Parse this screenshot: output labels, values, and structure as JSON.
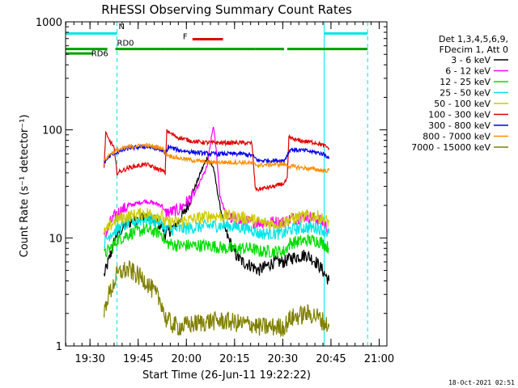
{
  "chart_data": {
    "type": "line",
    "title": "RHESSI Observing Summary Count Rates",
    "xlabel": "Start Time (26-Jun-11 19:22:22)",
    "ylabel": "Count Rate (s⁻¹ detector⁻¹)",
    "yscale": "log",
    "ylim": [
      1,
      1000
    ],
    "xlim_minutes": [
      0,
      100
    ],
    "x_ticks": [
      {
        "label": "19:30",
        "t": 7.6
      },
      {
        "label": "19:45",
        "t": 22.6
      },
      {
        "label": "20:00",
        "t": 37.6
      },
      {
        "label": "20:15",
        "t": 52.6
      },
      {
        "label": "20:30",
        "t": 67.6
      },
      {
        "label": "20:45",
        "t": 82.6
      },
      {
        "label": "21:00",
        "t": 97.6
      }
    ],
    "y_ticks": [
      {
        "label": "1",
        "v": 1
      },
      {
        "label": "10",
        "v": 10
      },
      {
        "label": "100",
        "v": 100
      },
      {
        "label": "1000",
        "v": 1000
      }
    ],
    "legend_header": [
      "Det 1,3,4,5,6,9,",
      "FDecim 1, Att 0"
    ],
    "legend_position": "right",
    "timestamp": "18-Oct-2021 02:51",
    "flags": [
      {
        "label": "N",
        "color": "#00e5e5",
        "segments": [
          [
            0,
            16
          ],
          [
            80.5,
            94
          ]
        ],
        "level": 780
      },
      {
        "label": "F",
        "color": "#e00000",
        "segments": [
          [
            39.5,
            49
          ]
        ],
        "level": 690
      },
      {
        "label": "RD0",
        "color": "#00a000",
        "segments": [
          [
            15.5,
            31
          ]
        ],
        "level": 560
      },
      {
        "label": "RD6",
        "color": "#00a000",
        "segments": [
          [
            0,
            8.5
          ]
        ],
        "level": 510
      }
    ],
    "green_flag_segments": [
      [
        0,
        13
      ],
      [
        31,
        59
      ],
      [
        59,
        68
      ],
      [
        69,
        94
      ]
    ],
    "vlines": [
      {
        "t": 0,
        "color": "#00e5e5",
        "dashed": false
      },
      {
        "t": 16,
        "color": "#00e5e5",
        "dashed": true
      },
      {
        "t": 80.5,
        "color": "#00e5e5",
        "dashed": false
      },
      {
        "t": 94,
        "color": "#00e5e5",
        "dashed": true
      }
    ],
    "data_gaps": [
      [
        0,
        12
      ],
      [
        82,
        100
      ]
    ],
    "orbit_breaks": [
      15.5,
      31,
      59,
      69
    ],
    "series": [
      {
        "name": "3 - 6 keV",
        "color": "#000000",
        "x": [
          12,
          14,
          16,
          20,
          25,
          30,
          31,
          33,
          37,
          40,
          42,
          44,
          46,
          48,
          50,
          52,
          53,
          55,
          58,
          60,
          65,
          68,
          70,
          75,
          78,
          80,
          82
        ],
        "values": [
          4.5,
          7,
          11,
          14,
          16,
          13,
          11,
          12,
          17,
          28,
          40,
          55,
          45,
          20,
          11,
          8,
          7,
          6,
          5.5,
          5,
          6,
          6,
          6.5,
          7,
          6,
          5,
          4
        ]
      },
      {
        "name": "6 - 12 keV",
        "color": "#ff00ff",
        "x": [
          12,
          14,
          16,
          20,
          25,
          30,
          31,
          35,
          40,
          44,
          46,
          47,
          48,
          50,
          52,
          55,
          58,
          60,
          65,
          68,
          70,
          75,
          78,
          80,
          82
        ],
        "values": [
          10,
          14,
          17,
          20,
          22,
          20,
          17,
          18,
          25,
          45,
          110,
          60,
          25,
          16,
          15,
          14,
          14,
          14,
          14,
          14,
          15,
          16,
          15,
          14,
          12
        ]
      },
      {
        "name": "12 - 25 keV",
        "color": "#00dd00",
        "x": [
          12,
          14,
          16,
          20,
          25,
          30,
          31,
          35,
          40,
          45,
          50,
          55,
          58,
          60,
          65,
          68,
          70,
          75,
          78,
          80,
          82
        ],
        "values": [
          7,
          8,
          9.5,
          11,
          12,
          11,
          9,
          8.5,
          8.5,
          8.5,
          8,
          8,
          8,
          7.5,
          7.5,
          7.5,
          9,
          9.5,
          9.5,
          9,
          8
        ]
      },
      {
        "name": "25 - 50 keV",
        "color": "#00e5e5",
        "x": [
          12,
          14,
          16,
          20,
          25,
          30,
          31,
          35,
          40,
          45,
          50,
          55,
          58,
          60,
          65,
          68,
          70,
          75,
          78,
          80,
          82
        ],
        "values": [
          9,
          11,
          12,
          14,
          15,
          14,
          12,
          12,
          12.5,
          13,
          13,
          12.5,
          12,
          11,
          11,
          11,
          12,
          12.5,
          12.5,
          12,
          11
        ]
      },
      {
        "name": "50 - 100 keV",
        "color": "#cccc00",
        "x": [
          12,
          14,
          16,
          20,
          25,
          30,
          31,
          35,
          40,
          45,
          50,
          55,
          58,
          60,
          65,
          68,
          70,
          75,
          78,
          80,
          82
        ],
        "values": [
          11,
          13,
          15,
          16,
          17,
          16,
          14,
          14,
          15,
          16,
          16,
          15.5,
          15,
          14,
          13.5,
          14,
          15,
          16,
          16,
          15,
          14
        ]
      },
      {
        "name": "100 - 300 keV",
        "color": "#e00000",
        "x": [
          12,
          12.5,
          13,
          15,
          16,
          20,
          25,
          30,
          31,
          31.5,
          32,
          35,
          40,
          45,
          50,
          55,
          58,
          59,
          59.5,
          65,
          68,
          69,
          69.5,
          72,
          75,
          78,
          80,
          82
        ],
        "values": [
          45,
          95,
          85,
          70,
          40,
          45,
          48,
          42,
          40,
          100,
          95,
          85,
          78,
          76,
          76,
          76,
          75,
          30,
          28,
          30,
          32,
          35,
          85,
          80,
          78,
          76,
          72,
          68
        ]
      },
      {
        "name": "300 - 800 keV",
        "color": "#0000ee",
        "x": [
          12,
          14,
          16,
          20,
          25,
          30,
          31,
          32,
          35,
          40,
          45,
          50,
          55,
          58,
          60,
          65,
          68,
          70,
          75,
          78,
          80,
          82
        ],
        "values": [
          50,
          58,
          62,
          68,
          70,
          65,
          58,
          70,
          65,
          62,
          60,
          60,
          60,
          58,
          52,
          52,
          52,
          66,
          64,
          62,
          60,
          56
        ]
      },
      {
        "name": "800 - 7000 keV",
        "color": "#ff8c00",
        "x": [
          12,
          14,
          16,
          20,
          25,
          30,
          31,
          32,
          35,
          40,
          45,
          50,
          55,
          58,
          60,
          65,
          68,
          70,
          75,
          78,
          80,
          82
        ],
        "values": [
          52,
          60,
          65,
          70,
          72,
          68,
          62,
          58,
          55,
          52,
          50,
          50,
          50,
          49,
          47,
          48,
          48,
          46,
          44,
          43,
          42,
          42
        ]
      },
      {
        "name": "7000 - 15000 keV",
        "color": "#808000",
        "x": [
          12,
          13,
          14,
          16,
          18,
          20,
          25,
          28,
          30,
          31,
          33,
          35,
          40,
          45,
          50,
          55,
          58,
          60,
          65,
          68,
          70,
          75,
          78,
          80,
          82
        ],
        "values": [
          2,
          2.8,
          3.2,
          4.5,
          5,
          5,
          4,
          3,
          2.5,
          1.8,
          1.6,
          1.5,
          1.6,
          1.7,
          1.7,
          1.6,
          1.6,
          1.5,
          1.5,
          1.5,
          1.8,
          2,
          1.9,
          1.7,
          1.5
        ]
      }
    ]
  }
}
